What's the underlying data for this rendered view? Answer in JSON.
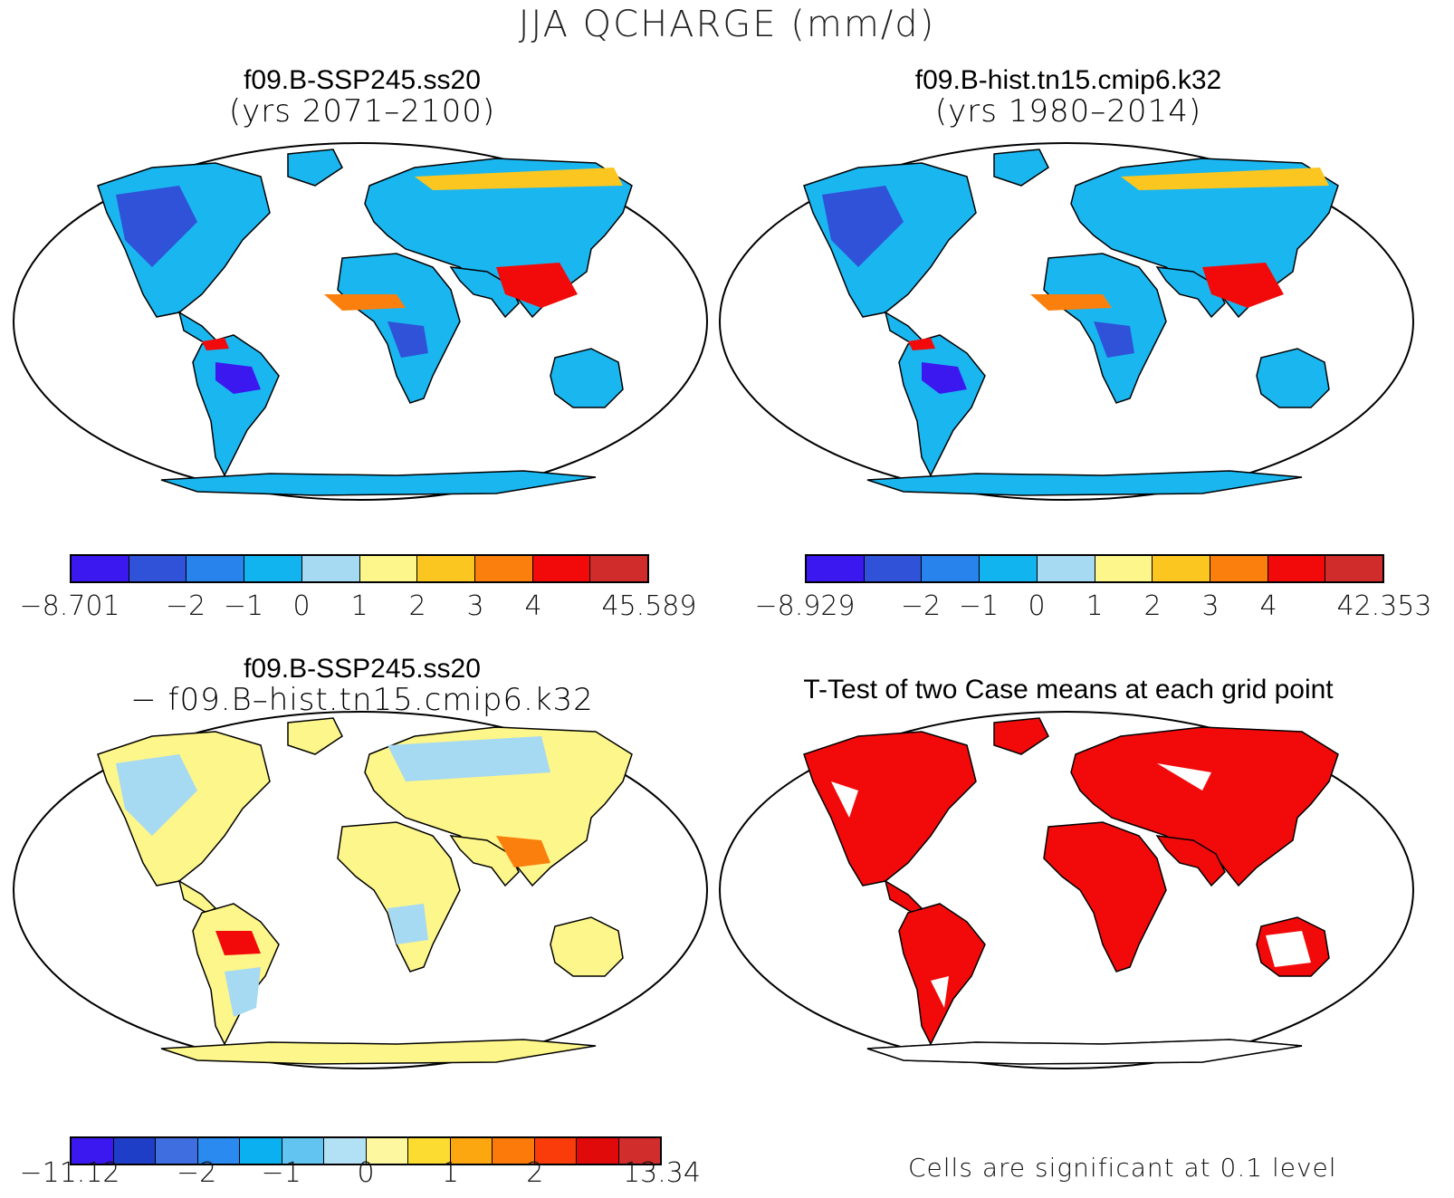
{
  "title": "JJA QCHARGE (mm/d)",
  "panels": [
    {
      "title_line1": "f09.B-SSP245.ss20",
      "title_line2": "(yrs 2071–2100)",
      "colorbar": {
        "colors": [
          "#3b17f0",
          "#2f52d8",
          "#2883ec",
          "#12b4f0",
          "#a6d9f2",
          "#fdf68a",
          "#fcc620",
          "#fb7f0c",
          "#f20a0a",
          "#d12c2c"
        ],
        "labels": [
          "−8.701",
          "−2",
          "−1",
          "0",
          "1",
          "2",
          "3",
          "4",
          "45.589"
        ],
        "label_boundaries": [
          0,
          2,
          3,
          4,
          5,
          6,
          7,
          8,
          10
        ]
      }
    },
    {
      "title_line1": "f09.B-hist.tn15.cmip6.k32",
      "title_line2": "(yrs 1980–2014)",
      "colorbar": {
        "colors": [
          "#3b17f0",
          "#2f52d8",
          "#2883ec",
          "#12b4f0",
          "#a6d9f2",
          "#fdf68a",
          "#fcc620",
          "#fb7f0c",
          "#f20a0a",
          "#d12c2c"
        ],
        "labels": [
          "−8.929",
          "−2",
          "−1",
          "0",
          "1",
          "2",
          "3",
          "4",
          "42.353"
        ],
        "label_boundaries": [
          0,
          2,
          3,
          4,
          5,
          6,
          7,
          8,
          10
        ]
      }
    },
    {
      "title_line1": "f09.B-SSP245.ss20",
      "title_line2": "− f09.B–hist.tn15.cmip6.k32",
      "colorbar": {
        "colors": [
          "#3b17f0",
          "#1f3ec8",
          "#3f6ee0",
          "#2a8af0",
          "#0ab0f0",
          "#62c4f0",
          "#b2e0f4",
          "#fdf8a0",
          "#fddc32",
          "#fca610",
          "#fc7a0a",
          "#fa3c0a",
          "#e00a0a",
          "#d22d2d"
        ],
        "labels": [
          "−11.12",
          "−2",
          "−1",
          "0",
          "1",
          "2",
          "13.34"
        ],
        "label_boundaries": [
          0,
          3,
          5,
          7,
          9,
          11,
          14
        ]
      }
    },
    {
      "title_line1": "T-Test of two Case means at each grid point",
      "note": "Cells are significant at 0.1 level"
    }
  ]
}
